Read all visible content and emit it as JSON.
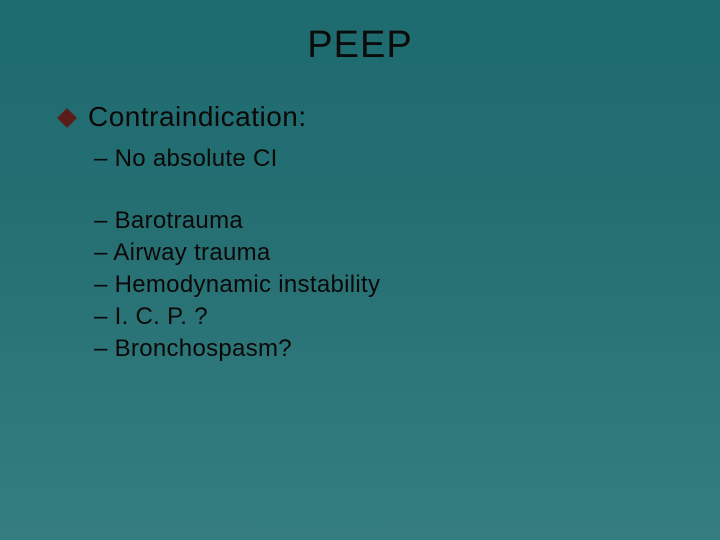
{
  "type": "slide",
  "background": {
    "gradient_start": "#1d6b6f",
    "gradient_end": "#347d80"
  },
  "title": {
    "text": "PEEP",
    "color": "#0b0b0b",
    "fontsize": 38
  },
  "bullet": {
    "icon_color": "#5b1d1a",
    "text": "Contraindication:",
    "text_color": "#0b0807",
    "fontsize": 28
  },
  "sub_items_group1": [
    "– No absolute CI"
  ],
  "sub_items_group2": [
    "– Barotrauma",
    "– Airway trauma",
    "– Hemodynamic instability",
    "– I. C. P. ?",
    "– Bronchospasm?"
  ],
  "sub_item_style": {
    "color": "#0b0807",
    "fontsize": 24
  }
}
